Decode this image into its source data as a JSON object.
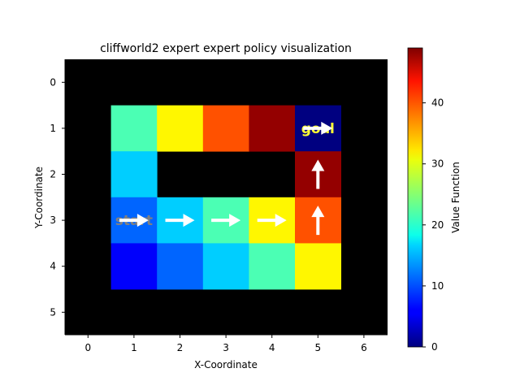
{
  "chart_data": {
    "type": "heatmap",
    "title": "cliffworld2 expert expert policy visualization",
    "xlabel": "X-Coordinate",
    "ylabel": "Y-Coordinate",
    "x_ticks": [
      "0",
      "1",
      "2",
      "3",
      "4",
      "5",
      "6"
    ],
    "y_ticks": [
      "0",
      "1",
      "2",
      "3",
      "4",
      "5"
    ],
    "colormap": "jet",
    "colorbar": {
      "label": "Value Function",
      "range": [
        0,
        49
      ],
      "ticks": [
        "0",
        "10",
        "20",
        "30",
        "40"
      ]
    },
    "grid": false,
    "wall_color": "#000000",
    "cells": [
      {
        "x": 1,
        "y": 1,
        "value": 22
      },
      {
        "x": 2,
        "y": 1,
        "value": 31
      },
      {
        "x": 3,
        "y": 1,
        "value": 39
      },
      {
        "x": 4,
        "y": 1,
        "value": 48
      },
      {
        "x": 5,
        "y": 1,
        "value": 0
      },
      {
        "x": 1,
        "y": 2,
        "value": 16
      },
      {
        "x": 5,
        "y": 2,
        "value": 48
      },
      {
        "x": 1,
        "y": 3,
        "value": 11
      },
      {
        "x": 2,
        "y": 3,
        "value": 16
      },
      {
        "x": 3,
        "y": 3,
        "value": 22
      },
      {
        "x": 4,
        "y": 3,
        "value": 31
      },
      {
        "x": 5,
        "y": 3,
        "value": 39
      },
      {
        "x": 1,
        "y": 4,
        "value": 6
      },
      {
        "x": 2,
        "y": 4,
        "value": 11
      },
      {
        "x": 3,
        "y": 4,
        "value": 16
      },
      {
        "x": 4,
        "y": 4,
        "value": 22
      },
      {
        "x": 5,
        "y": 4,
        "value": 31
      }
    ],
    "policy_arrows": [
      {
        "x": 1,
        "y": 3,
        "direction": "right"
      },
      {
        "x": 2,
        "y": 3,
        "direction": "right"
      },
      {
        "x": 3,
        "y": 3,
        "direction": "right"
      },
      {
        "x": 4,
        "y": 3,
        "direction": "right"
      },
      {
        "x": 5,
        "y": 3,
        "direction": "up"
      },
      {
        "x": 5,
        "y": 2,
        "direction": "up"
      },
      {
        "x": 5,
        "y": 1,
        "direction": "right"
      }
    ],
    "annotations": [
      {
        "text": "start",
        "x": 1,
        "y": 3,
        "color": "#808080"
      },
      {
        "text": "goal",
        "x": 5,
        "y": 1,
        "color": "#ffff33"
      }
    ]
  }
}
